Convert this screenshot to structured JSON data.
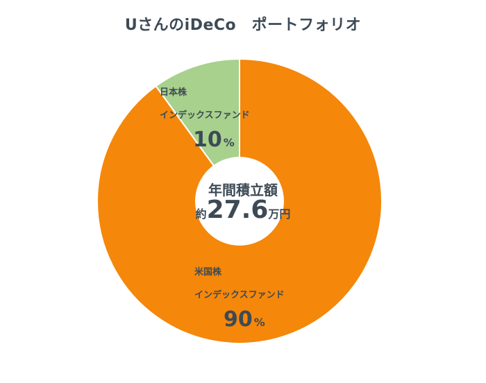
{
  "title": "UさんのiDeCo　ポートフォリオ",
  "center": {
    "line1": "年間積立額",
    "prefix": "約",
    "value": "27.6",
    "suffix": "万円"
  },
  "chart_data": {
    "type": "pie",
    "title": "UさんのiDeCo　ポートフォリオ",
    "donut": true,
    "slices": [
      {
        "region": "日本株",
        "fund": "インデックスファンド",
        "value": 10,
        "pct_label": "10",
        "color": "#a8d18d"
      },
      {
        "region": "米国株",
        "fund": "インデックスファンド",
        "value": 90,
        "pct_label": "90",
        "color": "#f5870a"
      }
    ],
    "percent_sign": "%"
  }
}
